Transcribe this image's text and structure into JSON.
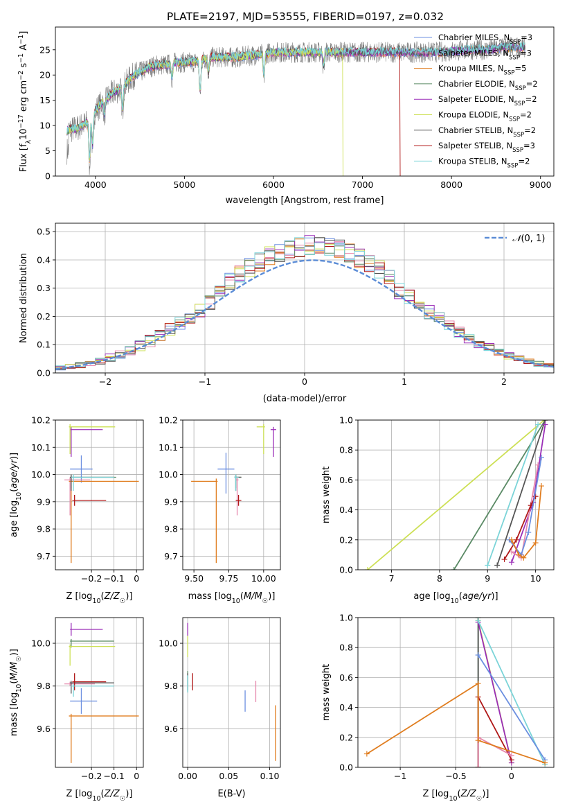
{
  "figure_title": "PLATE=2197, MJD=53555, FIBERID=0197, z=0.032",
  "colors": [
    "#6b8fe0",
    "#e689ad",
    "#e07d1f",
    "#5a8a65",
    "#9b2fb8",
    "#cde055",
    "#555555",
    "#b01818",
    "#7bd4d8"
  ],
  "chart_data": [
    {
      "id": "spectrum",
      "type": "line",
      "title": "PLATE=2197, MJD=53555, FIBERID=0197, z=0.032",
      "xlabel": "wavelength [Angstrom, rest frame]",
      "ylabel": "Flux [fλ10⁻¹⁷ erg cm⁻² s⁻¹ A⁻¹]",
      "xlim": [
        3550,
        9150
      ],
      "ylim": [
        0,
        29.5
      ],
      "xticks": [
        4000,
        5000,
        6000,
        7000,
        8000,
        9000
      ],
      "yticks": [
        0,
        5,
        10,
        15,
        20,
        25
      ],
      "legend_position": "upper-right",
      "legend": [
        {
          "name": "Chabrier MILES, N_SSP=3",
          "base": "Chabrier MILES, N",
          "sub": "SSP",
          "tail": "=3"
        },
        {
          "name": "Salpeter MILES, N_SSP=3",
          "base": "Salpeter MILES, N",
          "sub": "SSP",
          "tail": "=3"
        },
        {
          "name": "Kroupa MILES, N_SSP=5",
          "base": "Kroupa MILES, N",
          "sub": "SSP",
          "tail": "=5"
        },
        {
          "name": "Chabrier ELODIE, N_SSP=2",
          "base": "Chabrier ELODIE, N",
          "sub": "SSP",
          "tail": "=2"
        },
        {
          "name": "Salpeter ELODIE, N_SSP=2",
          "base": "Salpeter ELODIE, N",
          "sub": "SSP",
          "tail": "=2"
        },
        {
          "name": "Kroupa ELODIE, N_SSP=2",
          "base": "Kroupa ELODIE, N",
          "sub": "SSP",
          "tail": "=2"
        },
        {
          "name": "Chabrier STELIB, N_SSP=2",
          "base": "Chabrier STELIB, N",
          "sub": "SSP",
          "tail": "=2"
        },
        {
          "name": "Salpeter STELIB, N_SSP=3",
          "base": "Salpeter STELIB, N",
          "sub": "SSP",
          "tail": "=3"
        },
        {
          "name": "Kroupa STELIB, N_SSP=2",
          "base": "Kroupa STELIB, N",
          "sub": "SSP",
          "tail": "=2"
        }
      ],
      "continuum": {
        "x": [
          3680,
          3800,
          3900,
          4000,
          4100,
          4200,
          4300,
          4400,
          4500,
          4600,
          4700,
          4800,
          4900,
          5000,
          5100,
          5200,
          5300,
          5400,
          5500,
          5600,
          5800,
          6000,
          6200,
          6400,
          6600,
          6800,
          7000,
          7200,
          7400,
          7600,
          7800,
          8000,
          8200,
          8400,
          8600,
          8800
        ],
        "y": [
          9,
          9.5,
          10.5,
          13,
          15,
          16.5,
          17.5,
          19.5,
          20.5,
          21.5,
          22,
          22,
          22.5,
          22.5,
          22.5,
          23,
          23.5,
          23.5,
          23.5,
          23.5,
          24,
          24.5,
          24.5,
          24.5,
          24.5,
          24.5,
          24.5,
          24.5,
          24.5,
          24.5,
          24.5,
          24.7,
          25,
          25,
          25.5,
          25.5
        ]
      },
      "absorption_features": [
        {
          "x": 3934,
          "depth": 9
        },
        {
          "x": 3968,
          "depth": 7
        },
        {
          "x": 4102,
          "depth": 3
        },
        {
          "x": 4304,
          "depth": 5
        },
        {
          "x": 4861,
          "depth": 3
        },
        {
          "x": 5175,
          "depth": 7
        },
        {
          "x": 5270,
          "depth": 3
        },
        {
          "x": 5893,
          "depth": 5
        },
        {
          "x": 6563,
          "depth": 3
        }
      ],
      "drops": [
        {
          "color_index": 5,
          "from_x": 6780,
          "to_x": 9000
        },
        {
          "color_index": 7,
          "from_x": 7420,
          "to_x": 9000
        }
      ]
    },
    {
      "id": "residuals",
      "type": "histogram",
      "xlabel": "(data-model)/error",
      "ylabel": "Normed distribution",
      "xlim": [
        -2.5,
        2.5
      ],
      "ylim": [
        0,
        0.53
      ],
      "xticks": [
        -2,
        -1,
        0,
        1,
        2
      ],
      "yticks": [
        0.0,
        0.1,
        0.2,
        0.3,
        0.4,
        0.5
      ],
      "bin_width": 0.1,
      "reference_curve": {
        "name": "N(0,1)",
        "label_main": "𝒩",
        "label_args": "(0, 1)",
        "mean": 0.08,
        "sigma": 1.0,
        "style": "dashed"
      },
      "legend_position": "upper-right"
    },
    {
      "id": "age-vs-metallicity",
      "type": "errorbar",
      "xlabel": "Z [log10(Z/Z☉)]",
      "ylabel": "age [log10(age/yr)]",
      "xlim": [
        -0.36,
        0.03
      ],
      "ylim": [
        9.65,
        10.2
      ],
      "xticks": [
        -0.2,
        -0.1,
        0.0
      ],
      "yticks": [
        9.7,
        9.8,
        9.9,
        10.0,
        10.1,
        10.2
      ],
      "points": [
        {
          "c": 0,
          "x": -0.245,
          "y": 10.02,
          "xerr": [
            0.05,
            0.05
          ],
          "yerr": [
            0.05,
            0.05
          ]
        },
        {
          "c": 1,
          "x": -0.295,
          "y": 9.98,
          "xerr": [
            0.025,
            0.09
          ],
          "yerr": [
            0.13,
            0.01
          ]
        },
        {
          "c": 2,
          "x": -0.29,
          "y": 9.975,
          "xerr": [
            0.01,
            0.3
          ],
          "yerr": [
            0.3,
            0.01
          ]
        },
        {
          "c": 3,
          "x": -0.29,
          "y": 9.99,
          "xerr": [
            0.005,
            0.2
          ],
          "yerr": [
            0.04,
            0.01
          ]
        },
        {
          "c": 4,
          "x": -0.29,
          "y": 10.165,
          "xerr": [
            0.005,
            0.14
          ],
          "yerr": [
            0.1,
            0.01
          ]
        },
        {
          "c": 5,
          "x": -0.295,
          "y": 10.175,
          "xerr": [
            0.005,
            0.2
          ],
          "yerr": [
            0.1,
            0.01
          ]
        },
        {
          "c": 6,
          "x": -0.29,
          "y": 9.99,
          "xerr": [
            0.005,
            0.19
          ],
          "yerr": [
            0.05,
            0.01
          ]
        },
        {
          "c": 7,
          "x": -0.275,
          "y": 9.905,
          "xerr": [
            0.01,
            0.14
          ],
          "yerr": [
            0.02,
            0.02
          ]
        },
        {
          "c": 8,
          "x": -0.28,
          "y": 9.99,
          "xerr": [
            0.01,
            0.18
          ],
          "yerr": [
            0.05,
            0.01
          ]
        }
      ]
    },
    {
      "id": "age-vs-mass",
      "type": "errorbar",
      "xlabel": "mass [log10(M/M☉)]",
      "ylabel": "",
      "xlim": [
        9.42,
        10.12
      ],
      "ylim": [
        9.65,
        10.2
      ],
      "xticks": [
        9.5,
        9.75,
        10.0
      ],
      "xtick_labels": [
        "9.50",
        "9.75",
        "10.00"
      ],
      "yticks": [
        9.7,
        9.8,
        9.9,
        10.0,
        10.1,
        10.2
      ],
      "points": [
        {
          "c": 0,
          "x": 9.73,
          "y": 10.02,
          "xerr": [
            0.06,
            0.06
          ],
          "yerr": [
            0.09,
            0.06
          ]
        },
        {
          "c": 1,
          "x": 9.81,
          "y": 9.98,
          "xerr": [
            0.01,
            0.01
          ],
          "yerr": [
            0.13,
            0.01
          ]
        },
        {
          "c": 2,
          "x": 9.66,
          "y": 9.975,
          "xerr": [
            0.18,
            0.01
          ],
          "yerr": [
            0.3,
            0.01
          ]
        },
        {
          "c": 3,
          "x": 9.8,
          "y": 9.99,
          "xerr": [
            0.01,
            0.04
          ],
          "yerr": [
            0.04,
            0.01
          ]
        },
        {
          "c": 4,
          "x": 10.07,
          "y": 10.165,
          "xerr": [
            0.02,
            0.02
          ],
          "yerr": [
            0.1,
            0.01
          ]
        },
        {
          "c": 5,
          "x": 10.0,
          "y": 10.175,
          "xerr": [
            0.05,
            0.01
          ],
          "yerr": [
            0.1,
            0.01
          ]
        },
        {
          "c": 6,
          "x": 9.8,
          "y": 9.99,
          "xerr": [
            0.01,
            0.04
          ],
          "yerr": [
            0.05,
            0.01
          ]
        },
        {
          "c": 7,
          "x": 9.82,
          "y": 9.905,
          "xerr": [
            0.02,
            0.02
          ],
          "yerr": [
            0.02,
            0.02
          ]
        },
        {
          "c": 8,
          "x": 9.8,
          "y": 9.99,
          "xerr": [
            0.01,
            0.02
          ],
          "yerr": [
            0.05,
            0.01
          ]
        }
      ]
    },
    {
      "id": "mass-weight-vs-age",
      "type": "line",
      "xlabel": "age [log10(age/yr)]",
      "ylabel": "mass weight",
      "xlim": [
        6.3,
        10.38
      ],
      "ylim": [
        0,
        1.0
      ],
      "xticks": [
        7,
        8,
        9,
        10
      ],
      "yticks": [
        0.0,
        0.2,
        0.4,
        0.6,
        0.8,
        1.0
      ],
      "series": [
        {
          "c": 5,
          "x": [
            6.5,
            10.18
          ],
          "y": [
            0.0,
            1.0
          ]
        },
        {
          "c": 3,
          "x": [
            8.3,
            10.2
          ],
          "y": [
            0.0,
            1.0
          ]
        },
        {
          "c": 6,
          "x": [
            9.2,
            10.2
          ],
          "y": [
            0.03,
            1.0
          ]
        },
        {
          "c": 8,
          "x": [
            9.0,
            10.05
          ],
          "y": [
            0.03,
            0.97
          ]
        },
        {
          "c": 4,
          "x": [
            9.5,
            9.95,
            10.2
          ],
          "y": [
            0.05,
            0.45,
            0.97
          ]
        },
        {
          "c": 1,
          "x": [
            9.5,
            9.7,
            10.05
          ],
          "y": [
            0.12,
            0.08,
            0.7
          ]
        },
        {
          "c": 7,
          "x": [
            9.35,
            9.6,
            9.9,
            10.0
          ],
          "y": [
            0.07,
            0.2,
            0.43,
            0.49
          ]
        },
        {
          "c": 0,
          "x": [
            9.45,
            9.7,
            9.85,
            10.12
          ],
          "y": [
            0.2,
            0.1,
            0.25,
            0.75
          ]
        },
        {
          "c": 2,
          "x": [
            9.5,
            9.65,
            9.75,
            10.0,
            10.12
          ],
          "y": [
            0.2,
            0.1,
            0.08,
            0.18,
            0.56
          ]
        }
      ]
    },
    {
      "id": "mass-vs-metallicity",
      "type": "errorbar",
      "xlabel": "Z [log10(Z/Z☉)]",
      "ylabel": "mass [log10(M/M☉)]",
      "xlim": [
        -0.36,
        0.03
      ],
      "ylim": [
        9.42,
        10.12
      ],
      "xticks": [
        -0.2,
        -0.1,
        0.0
      ],
      "yticks": [
        9.6,
        9.8,
        10.0
      ],
      "points": [
        {
          "c": 0,
          "x": -0.245,
          "y": 9.73,
          "xerr": [
            0.05,
            0.07
          ],
          "yerr": [
            0.06,
            0.06
          ]
        },
        {
          "c": 1,
          "x": -0.295,
          "y": 9.81,
          "xerr": [
            0.025,
            0.11
          ],
          "yerr": [
            0.01,
            0.01
          ]
        },
        {
          "c": 2,
          "x": -0.29,
          "y": 9.66,
          "xerr": [
            0.01,
            0.3
          ],
          "yerr": [
            0.22,
            0.01
          ]
        },
        {
          "c": 3,
          "x": -0.29,
          "y": 10.01,
          "xerr": [
            0.005,
            0.19
          ],
          "yerr": [
            0.03,
            0.01
          ]
        },
        {
          "c": 4,
          "x": -0.29,
          "y": 10.065,
          "xerr": [
            0.005,
            0.14
          ],
          "yerr": [
            0.03,
            0.03
          ]
        },
        {
          "c": 5,
          "x": -0.295,
          "y": 9.985,
          "xerr": [
            0.005,
            0.2
          ],
          "yerr": [
            0.09,
            0.01
          ]
        },
        {
          "c": 6,
          "x": -0.29,
          "y": 9.815,
          "xerr": [
            0.005,
            0.19
          ],
          "yerr": [
            0.05,
            0.01
          ]
        },
        {
          "c": 7,
          "x": -0.275,
          "y": 9.82,
          "xerr": [
            0.01,
            0.14
          ],
          "yerr": [
            0.04,
            0.04
          ]
        },
        {
          "c": 8,
          "x": -0.28,
          "y": 9.8,
          "xerr": [
            0.01,
            0.18
          ],
          "yerr": [
            0.05,
            0.01
          ]
        }
      ]
    },
    {
      "id": "mass-vs-extinction",
      "type": "errorbar",
      "xlabel": "E(B-V)",
      "ylabel": "",
      "xlim": [
        -0.006,
        0.113
      ],
      "ylim": [
        9.42,
        10.12
      ],
      "xticks": [
        0.0,
        0.05,
        0.1
      ],
      "xtick_labels": [
        "0.00",
        "0.05",
        "0.10"
      ],
      "yticks": [
        9.6,
        9.8,
        10.0
      ],
      "points": [
        {
          "c": 0,
          "x": 0.07,
          "y": 9.73,
          "xerr": [
            0,
            0
          ],
          "yerr": [
            0.05,
            0.05
          ]
        },
        {
          "c": 1,
          "x": 0.083,
          "y": 9.775,
          "xerr": [
            0,
            0
          ],
          "yerr": [
            0.05,
            0.05
          ]
        },
        {
          "c": 2,
          "x": 0.107,
          "y": 9.58,
          "xerr": [
            0.0,
            0.0
          ],
          "yerr": [
            0.13,
            0.13
          ]
        },
        {
          "c": 3,
          "x": 0.0,
          "y": 9.82,
          "xerr": [
            0,
            0
          ],
          "yerr": [
            0.05,
            0.05
          ]
        },
        {
          "c": 4,
          "x": 0.0,
          "y": 10.065,
          "xerr": [
            0,
            0
          ],
          "yerr": [
            0.03,
            0.03
          ]
        },
        {
          "c": 5,
          "x": 0.0,
          "y": 9.985,
          "xerr": [
            0,
            0
          ],
          "yerr": [
            0.05,
            0.05
          ]
        },
        {
          "c": 6,
          "x": 0.0,
          "y": 9.82,
          "xerr": [
            0,
            0
          ],
          "yerr": [
            0.04,
            0.04
          ]
        },
        {
          "c": 7,
          "x": 0.006,
          "y": 9.82,
          "xerr": [
            0,
            0
          ],
          "yerr": [
            0.04,
            0.04
          ]
        },
        {
          "c": 8,
          "x": 0.0,
          "y": 9.81,
          "xerr": [
            0,
            0
          ],
          "yerr": [
            0.04,
            0.04
          ]
        }
      ]
    },
    {
      "id": "mass-weight-vs-metallicity",
      "type": "line",
      "xlabel": "Z [log10(Z/Z☉)]",
      "ylabel": "mass weight",
      "xlim": [
        -1.38,
        0.38
      ],
      "ylim": [
        0,
        1.0
      ],
      "xticks": [
        -1.0,
        -0.5,
        0.0
      ],
      "yticks": [
        0.0,
        0.2,
        0.4,
        0.6,
        0.8,
        1.0
      ],
      "series": [
        {
          "c": 3,
          "x": [
            -0.3,
            -0.3
          ],
          "y": [
            0.0,
            1.0
          ]
        },
        {
          "c": 6,
          "x": [
            -0.3,
            -0.3
          ],
          "y": [
            0.0,
            1.0
          ]
        },
        {
          "c": 5,
          "x": [
            -0.3,
            0.0
          ],
          "y": [
            0.98,
            0.03
          ]
        },
        {
          "c": 4,
          "x": [
            -0.3,
            0.0
          ],
          "y": [
            0.97,
            0.03
          ]
        },
        {
          "c": 8,
          "x": [
            -0.3,
            0.3
          ],
          "y": [
            0.98,
            0.02
          ]
        },
        {
          "c": 0,
          "x": [
            -0.3,
            0.3
          ],
          "y": [
            0.75,
            0.05
          ]
        },
        {
          "c": 7,
          "x": [
            -0.3,
            -0.3,
            0.0
          ],
          "y": [
            0.0,
            0.47,
            0.05
          ]
        },
        {
          "c": 1,
          "x": [
            -0.3,
            -0.3,
            0.0
          ],
          "y": [
            0.0,
            0.2,
            0.08
          ]
        },
        {
          "c": 2,
          "x": [
            -1.3,
            -0.3,
            -0.3,
            0.3
          ],
          "y": [
            0.09,
            0.56,
            0.18,
            0.03
          ]
        }
      ]
    }
  ]
}
